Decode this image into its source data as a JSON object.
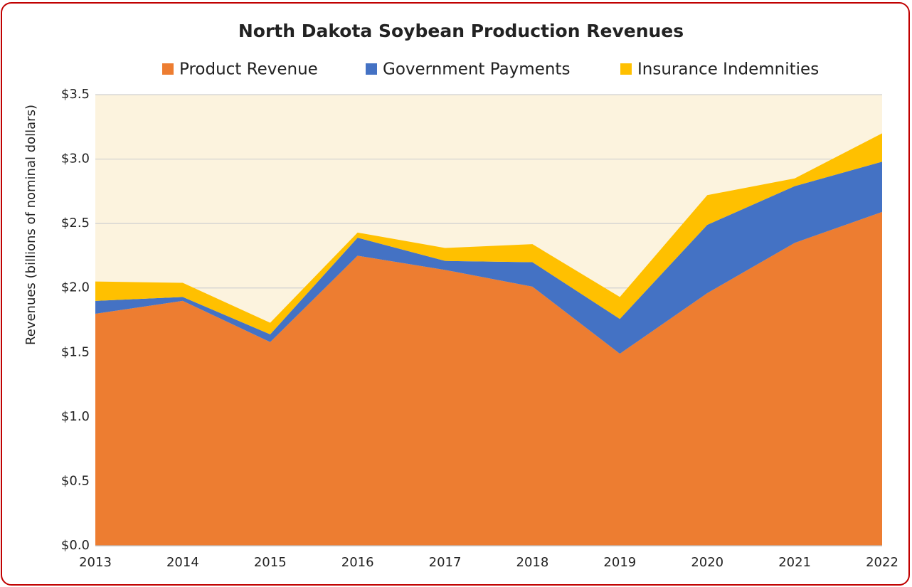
{
  "chart_data": {
    "type": "stacked_area",
    "title": "North Dakota Soybean Production Revenues",
    "y_label": "Revenues (billions of nominal dollars)",
    "categories": [
      "2013",
      "2014",
      "2015",
      "2016",
      "2017",
      "2018",
      "2019",
      "2020",
      "2021",
      "2022"
    ],
    "series": [
      {
        "name": "Product Revenue",
        "color": "#ed7d31",
        "values": [
          1.8,
          1.9,
          1.58,
          2.25,
          2.14,
          2.01,
          1.49,
          1.96,
          2.35,
          2.59
        ]
      },
      {
        "name": "Government Payments",
        "color": "#4472c4",
        "values": [
          0.1,
          0.03,
          0.06,
          0.14,
          0.07,
          0.19,
          0.27,
          0.53,
          0.44,
          0.39
        ]
      },
      {
        "name": "Insurance Indemnities",
        "color": "#ffc000",
        "values": [
          0.15,
          0.11,
          0.09,
          0.04,
          0.1,
          0.14,
          0.17,
          0.23,
          0.06,
          0.22
        ]
      }
    ],
    "ylim": [
      0,
      3.5
    ],
    "yticks": [
      {
        "value": 0,
        "label": "$0.0"
      },
      {
        "value": 0.5,
        "label": "$0.5"
      },
      {
        "value": 1,
        "label": "$1.0"
      },
      {
        "value": 1.5,
        "label": "$1.5"
      },
      {
        "value": 2,
        "label": "$2.0"
      },
      {
        "value": 2.5,
        "label": "$2.5"
      },
      {
        "value": 3,
        "label": "$3.0"
      },
      {
        "value": 3.5,
        "label": "$3.5"
      }
    ],
    "grid": true,
    "legend": "top"
  }
}
